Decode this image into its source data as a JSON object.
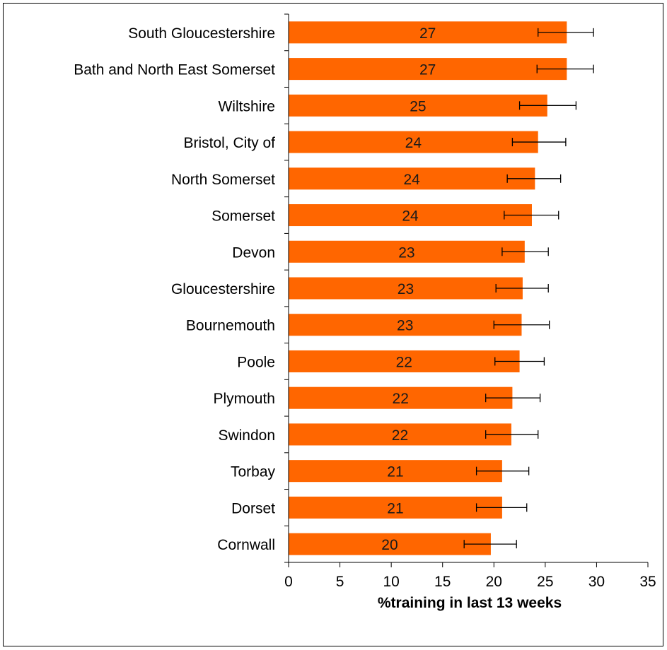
{
  "chart_data": {
    "type": "bar",
    "orientation": "horizontal",
    "xlabel": "%training in last 13 weeks",
    "xlim": [
      0,
      35
    ],
    "xticks": [
      0,
      5,
      10,
      15,
      20,
      25,
      30,
      35
    ],
    "bar_color": "#ff6600",
    "grid": false,
    "categories": [
      "South Gloucestershire",
      "Bath and North East Somerset",
      "Wiltshire",
      "Bristol, City of",
      "North Somerset",
      "Somerset",
      "Devon",
      "Gloucestershire",
      "Bournemouth",
      "Poole",
      "Plymouth",
      "Swindon",
      "Torbay",
      "Dorset",
      "Cornwall"
    ],
    "values": [
      27.1,
      27.1,
      25.2,
      24.3,
      24.0,
      23.7,
      23.0,
      22.8,
      22.7,
      22.5,
      21.8,
      21.7,
      20.8,
      20.8,
      19.7
    ],
    "data_labels": [
      "27",
      "27",
      "25",
      "24",
      "24",
      "24",
      "23",
      "23",
      "23",
      "22",
      "22",
      "22",
      "21",
      "21",
      "20"
    ],
    "error_low": [
      24.3,
      24.2,
      22.5,
      21.8,
      21.3,
      21.0,
      20.8,
      20.2,
      20.0,
      20.1,
      19.2,
      19.2,
      18.3,
      18.3,
      17.1
    ],
    "error_high": [
      29.7,
      29.7,
      28.0,
      27.0,
      26.5,
      26.3,
      25.3,
      25.3,
      25.4,
      24.9,
      24.5,
      24.3,
      23.4,
      23.2,
      22.2
    ]
  }
}
